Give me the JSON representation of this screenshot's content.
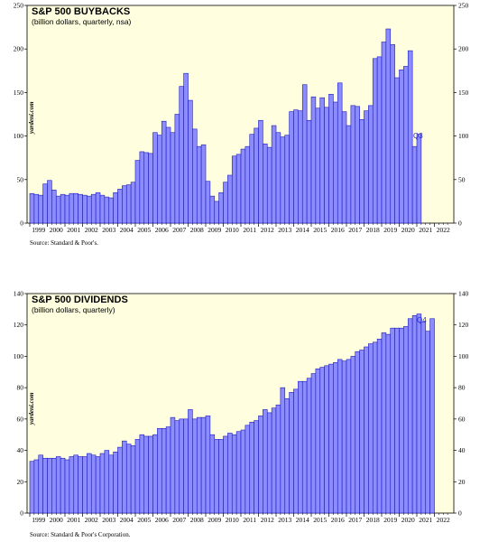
{
  "chart_data": [
    {
      "type": "bar",
      "title": "S&P 500 BUYBACKS",
      "subtitle": "(billion dollars, quarterly, nsa)",
      "source": "Source: Standard & Poor's.",
      "brand": "yardeni.com",
      "end_label": "Q3",
      "ylim": [
        0,
        250
      ],
      "yticks": [
        0,
        50,
        100,
        150,
        200,
        250
      ],
      "year_labels": [
        "1999",
        "2000",
        "2001",
        "2002",
        "2003",
        "2004",
        "2005",
        "2006",
        "2007",
        "2008",
        "2009",
        "2010",
        "2011",
        "2012",
        "2013",
        "2014",
        "2015",
        "2016",
        "2017",
        "2018",
        "2019",
        "2020",
        "2021",
        "2022"
      ],
      "grid": false,
      "colors": {
        "bar_fill": "#8c8cff",
        "bar_stroke": "#1c1cbe",
        "plot_bg": "#ffffe0"
      },
      "values": [
        34,
        33,
        32,
        45,
        49,
        38,
        31,
        33,
        32,
        34,
        34,
        33,
        32,
        31,
        33,
        35,
        32,
        30,
        29,
        35,
        39,
        43,
        44,
        47,
        72,
        82,
        81,
        80,
        104,
        101,
        117,
        110,
        104,
        125,
        157,
        172,
        141,
        108,
        88,
        90,
        48,
        31,
        25,
        35,
        47,
        55,
        77,
        79,
        85,
        88,
        102,
        109,
        118,
        91,
        87,
        112,
        104,
        99,
        101,
        128,
        130,
        129,
        159,
        118,
        145,
        132,
        144,
        133,
        148,
        139,
        161,
        128,
        112,
        135,
        134,
        119,
        129,
        135,
        189,
        191,
        208,
        223,
        205,
        167,
        176,
        180,
        198,
        88,
        102
      ]
    },
    {
      "type": "bar",
      "title": "S&P 500 DIVIDENDS",
      "subtitle": "(billion dollars, quarterly)",
      "source": "Source: Standard & Poor's Corporation.",
      "brand": "yardeni.com",
      "end_label": "Q4",
      "ylim": [
        0,
        140
      ],
      "yticks": [
        0,
        20,
        40,
        60,
        80,
        100,
        120,
        140
      ],
      "year_labels": [
        "1999",
        "2000",
        "2001",
        "2002",
        "2003",
        "2004",
        "2005",
        "2006",
        "2007",
        "2008",
        "2009",
        "2010",
        "2011",
        "2012",
        "2013",
        "2014",
        "2015",
        "2016",
        "2017",
        "2018",
        "2019",
        "2020",
        "2021",
        "2022"
      ],
      "grid": false,
      "colors": {
        "bar_fill": "#8c8cff",
        "bar_stroke": "#1c1cbe",
        "plot_bg": "#ffffe0"
      },
      "values": [
        33,
        34,
        37,
        35,
        35,
        35,
        36,
        35,
        34,
        36,
        37,
        36,
        36,
        38,
        37,
        36,
        38,
        40,
        37,
        39,
        42,
        46,
        44,
        43,
        47,
        50,
        49,
        49,
        50,
        54,
        54,
        55,
        61,
        59,
        60,
        60,
        66,
        60,
        61,
        61,
        62,
        50,
        47,
        47,
        49,
        51,
        50,
        52,
        53,
        56,
        58,
        59,
        62,
        66,
        64,
        67,
        69,
        80,
        73,
        77,
        79,
        84,
        84,
        86,
        89,
        92,
        93,
        94,
        95,
        96,
        98,
        97,
        98,
        100,
        103,
        104,
        106,
        108,
        109,
        111,
        115,
        114,
        118,
        118,
        118,
        119,
        124,
        126,
        127,
        122,
        116,
        124
      ]
    }
  ]
}
